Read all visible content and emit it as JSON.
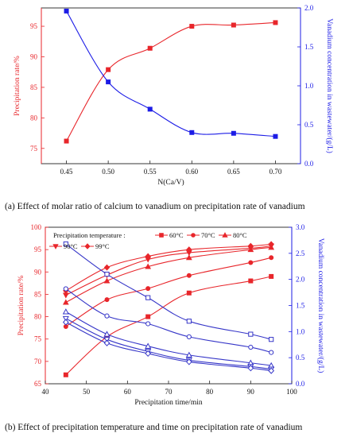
{
  "captions": {
    "a": "(a)   Effect of molar ratio of calcium to vanadium on precipitation rate of vanadium",
    "b": "(b) Effect of precipitation temperature and time on precipitation rate of vanadium"
  },
  "chart_data": [
    {
      "type": "line",
      "xlabel": "N(Ca/V)",
      "ylabel": "Precipitation rate/%",
      "y2label": "Vanadium concentration in wastewater/(g/L)",
      "xlim": [
        0.42,
        0.73
      ],
      "ylim": [
        72.5,
        98
      ],
      "y2lim": [
        0,
        2.0
      ],
      "xticks": [
        "0.45",
        "0.50",
        "0.55",
        "0.60",
        "0.65",
        "0.70"
      ],
      "yticks": [
        "75",
        "80",
        "85",
        "90",
        "95"
      ],
      "y2ticks": [
        "0.0",
        "0.5",
        "1.0",
        "1.5",
        "2.0"
      ],
      "x": [
        0.45,
        0.5,
        0.55,
        0.6,
        0.65,
        0.7
      ],
      "series": [
        {
          "axis": "left",
          "color": "#e8262b",
          "marker": "square",
          "values": [
            76.2,
            87.9,
            91.4,
            95.0,
            95.2,
            95.6
          ]
        },
        {
          "axis": "right",
          "color": "#1c1ce6",
          "marker": "square",
          "values": [
            1.96,
            1.05,
            0.7,
            0.4,
            0.39,
            0.35
          ]
        }
      ]
    },
    {
      "type": "line",
      "xlabel": "Precipitation time/min",
      "ylabel": "Precipitation rate/%",
      "y2label": "Vanadium concentration in wastewater/(g/L)",
      "xlim": [
        40,
        100
      ],
      "ylim": [
        65,
        100
      ],
      "y2lim": [
        0,
        3.0
      ],
      "xticks": [
        "40",
        "50",
        "60",
        "70",
        "80",
        "90",
        "100"
      ],
      "yticks": [
        "65",
        "70",
        "75",
        "80",
        "85",
        "90",
        "95",
        "100"
      ],
      "y2ticks": [
        "0.0",
        "0.5",
        "1.0",
        "1.5",
        "2.0",
        "2.5",
        "3.0"
      ],
      "legend": {
        "title": "Precipitation temperature :",
        "labels": [
          "60°C",
          "70°C",
          "80°C",
          "90°C",
          "99°C"
        ],
        "placement": "top"
      },
      "x": [
        45,
        55,
        65,
        75,
        90,
        95
      ],
      "series": [
        {
          "name": "60°C",
          "axis": "left",
          "color": "#e8262b",
          "marker": "square",
          "values": [
            67.0,
            75.5,
            80.0,
            85.3,
            88.0,
            89.0
          ]
        },
        {
          "name": "70°C",
          "axis": "left",
          "color": "#e8262b",
          "marker": "circle",
          "values": [
            77.8,
            83.8,
            86.3,
            89.2,
            92.1,
            93.2
          ]
        },
        {
          "name": "80°C",
          "axis": "left",
          "color": "#e8262b",
          "marker": "triangle-up",
          "values": [
            83.2,
            88.0,
            91.2,
            93.2,
            95.0,
            95.5
          ]
        },
        {
          "name": "90°C",
          "axis": "left",
          "color": "#e8262b",
          "marker": "triangle-down",
          "values": [
            84.8,
            89.3,
            92.8,
            94.3,
            95.3,
            95.8
          ]
        },
        {
          "name": "99°C",
          "axis": "left",
          "color": "#e8262b",
          "marker": "diamond",
          "values": [
            85.8,
            91.0,
            93.5,
            95.0,
            95.8,
            96.2
          ]
        },
        {
          "axis": "right",
          "color": "#3636c8",
          "marker": "square-open",
          "values": [
            2.68,
            2.1,
            1.65,
            1.2,
            0.95,
            0.85
          ]
        },
        {
          "axis": "right",
          "color": "#3636c8",
          "marker": "circle-open",
          "values": [
            1.82,
            1.3,
            1.15,
            0.9,
            0.7,
            0.6
          ]
        },
        {
          "axis": "right",
          "color": "#3636c8",
          "marker": "triangle-up-open",
          "values": [
            1.38,
            0.95,
            0.72,
            0.55,
            0.4,
            0.35
          ]
        },
        {
          "axis": "right",
          "color": "#3636c8",
          "marker": "triangle-down-open",
          "values": [
            1.25,
            0.85,
            0.62,
            0.45,
            0.33,
            0.28
          ]
        },
        {
          "axis": "right",
          "color": "#3636c8",
          "marker": "diamond-open",
          "values": [
            1.18,
            0.78,
            0.58,
            0.42,
            0.3,
            0.25
          ]
        }
      ]
    }
  ]
}
